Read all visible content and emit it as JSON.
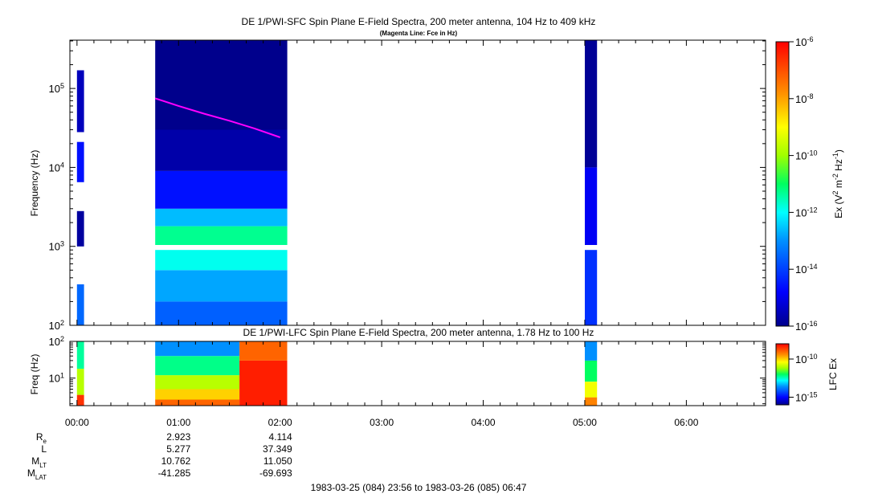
{
  "chart_data": [
    {
      "type": "heatmap",
      "title": "DE 1/PWI-SFC  Spin Plane E-Field Spectra, 200 meter antenna, 104 Hz to 409 kHz",
      "subtitle": "(Magenta Line: Fce in Hz)",
      "ylabel": "Frequency (Hz)",
      "y_scale": "log",
      "ylim": [
        100,
        409000
      ],
      "y_ticks": [
        {
          "value": 100,
          "base": "10",
          "exp": "2"
        },
        {
          "value": 1000,
          "base": "10",
          "exp": "3"
        },
        {
          "value": 10000,
          "base": "10",
          "exp": "4"
        },
        {
          "value": 100000,
          "base": "10",
          "exp": "5"
        }
      ],
      "colorbar": {
        "label_parts": [
          "Ex (V",
          "2",
          " m",
          "-2",
          " Hz",
          "-1",
          ")"
        ],
        "scale": "log",
        "range": [
          1e-16,
          1e-06
        ],
        "ticks": [
          {
            "value": 1e-16,
            "base": "10",
            "exp": "-16"
          },
          {
            "value": 1e-14,
            "base": "10",
            "exp": "-14"
          },
          {
            "value": 1e-12,
            "base": "10",
            "exp": "-12"
          },
          {
            "value": 1e-10,
            "base": "10",
            "exp": "-10"
          },
          {
            "value": 1e-08,
            "base": "10",
            "exp": "-8"
          },
          {
            "value": 1e-06,
            "base": "10",
            "exp": "-6"
          }
        ],
        "colormap": "rainbow"
      },
      "line": {
        "name": "Fce",
        "color": "#ff00ff",
        "x_hours": [
          0.77,
          1.0,
          1.25,
          1.5,
          1.75,
          2.0
        ],
        "y_hz": [
          75000,
          60000,
          48000,
          39000,
          31000,
          24000
        ]
      },
      "segments": [
        {
          "start_h": 0.0,
          "end_h": 0.07,
          "bands": [
            {
              "f_lo": 100,
              "f_hi": 330,
              "level": -13.5
            },
            {
              "f_lo": 1000,
              "f_hi": 2800,
              "level": -15.8
            },
            {
              "f_lo": 6500,
              "f_hi": 21000,
              "level": -14.6
            },
            {
              "f_lo": 28000,
              "f_hi": 170000,
              "level": -15.5
            }
          ]
        },
        {
          "start_h": 0.77,
          "end_h": 2.07,
          "bands": [
            {
              "f_lo": 100,
              "f_hi": 200,
              "level": -13.6
            },
            {
              "f_lo": 200,
              "f_hi": 500,
              "level": -12.8
            },
            {
              "f_lo": 500,
              "f_hi": 900,
              "level": -11.9
            },
            {
              "f_lo": 1040,
              "f_hi": 1800,
              "level": -11.3
            },
            {
              "f_lo": 1800,
              "f_hi": 3000,
              "level": -12.6
            },
            {
              "f_lo": 3000,
              "f_hi": 9000,
              "level": -14.6
            },
            {
              "f_lo": 9000,
              "f_hi": 30000,
              "level": -15.7
            },
            {
              "f_lo": 30000,
              "f_hi": 409000,
              "level": -16.0
            }
          ]
        },
        {
          "start_h": 5.0,
          "end_h": 5.12,
          "bands": [
            {
              "f_lo": 100,
              "f_hi": 900,
              "level": -14.2
            },
            {
              "f_lo": 1040,
              "f_hi": 10000,
              "level": -14.9
            },
            {
              "f_lo": 10000,
              "f_hi": 409000,
              "level": -15.9
            }
          ]
        }
      ]
    },
    {
      "type": "heatmap",
      "title": "DE 1/PWI-LFC  Spin Plane E-Field Spectra, 200 meter antenna, 1.78 Hz to 100 Hz",
      "ylabel": "Freq (Hz)",
      "y_scale": "log",
      "ylim": [
        1.78,
        100
      ],
      "y_ticks": [
        {
          "value": 10,
          "base": "10",
          "exp": "1"
        },
        {
          "value": 100,
          "base": "10",
          "exp": "2"
        }
      ],
      "colorbar": {
        "label": "LFC Ex",
        "scale": "log",
        "range": [
          1e-16,
          1e-08
        ],
        "ticks": [
          {
            "value": 1e-15,
            "base": "10",
            "exp": "-15"
          },
          {
            "value": 1e-10,
            "base": "10",
            "exp": "-10"
          }
        ],
        "colormap": "rainbow"
      },
      "segments": [
        {
          "start_h": 0.0,
          "end_h": 0.07,
          "bands": [
            {
              "f_lo": 1.78,
              "f_hi": 3.5,
              "level": -8.5
            },
            {
              "f_lo": 3.5,
              "f_hi": 18,
              "level": -11.0
            },
            {
              "f_lo": 18,
              "f_hi": 100,
              "level": -12.3
            }
          ]
        },
        {
          "start_h": 0.77,
          "end_h": 1.6,
          "bands": [
            {
              "f_lo": 1.78,
              "f_hi": 2.6,
              "level": -9.0
            },
            {
              "f_lo": 2.6,
              "f_hi": 5,
              "level": -10.0
            },
            {
              "f_lo": 5,
              "f_hi": 12,
              "level": -11.0
            },
            {
              "f_lo": 12,
              "f_hi": 40,
              "level": -12.2
            },
            {
              "f_lo": 40,
              "f_hi": 100,
              "level": -13.6
            }
          ]
        },
        {
          "start_h": 1.6,
          "end_h": 2.07,
          "bands": [
            {
              "f_lo": 1.78,
              "f_hi": 30,
              "level": -8.3
            },
            {
              "f_lo": 30,
              "f_hi": 100,
              "level": -9.0
            }
          ]
        },
        {
          "start_h": 5.0,
          "end_h": 5.12,
          "bands": [
            {
              "f_lo": 1.78,
              "f_hi": 3,
              "level": -9.3
            },
            {
              "f_lo": 3,
              "f_hi": 8,
              "level": -10.5
            },
            {
              "f_lo": 8,
              "f_hi": 30,
              "level": -12.0
            },
            {
              "f_lo": 30,
              "f_hi": 100,
              "level": -13.6
            }
          ]
        }
      ]
    }
  ],
  "x_axis": {
    "range_hours": [
      -0.07,
      6.78
    ],
    "ticks": [
      {
        "hour": 0,
        "label": "00:00"
      },
      {
        "hour": 1,
        "label": "01:00"
      },
      {
        "hour": 2,
        "label": "02:00"
      },
      {
        "hour": 3,
        "label": "03:00"
      },
      {
        "hour": 4,
        "label": "04:00"
      },
      {
        "hour": 5,
        "label": "05:00"
      },
      {
        "hour": 6,
        "label": "06:00"
      }
    ]
  },
  "ephemeris": {
    "labels": [
      {
        "main": "R",
        "sub": "e"
      },
      {
        "main": "L",
        "sub": ""
      },
      {
        "main": "M",
        "sub": "LT"
      },
      {
        "main": "M",
        "sub": "LAT"
      }
    ],
    "columns": [
      {
        "hour": 1,
        "values": [
          "2.923",
          "5.277",
          "10.762",
          "-41.285"
        ]
      },
      {
        "hour": 2,
        "values": [
          "4.114",
          "37.349",
          "11.050",
          "-69.693"
        ]
      }
    ]
  },
  "footer": {
    "time_range": "1983-03-25 (084) 23:56 to 1983-03-26 (085) 06:47"
  }
}
